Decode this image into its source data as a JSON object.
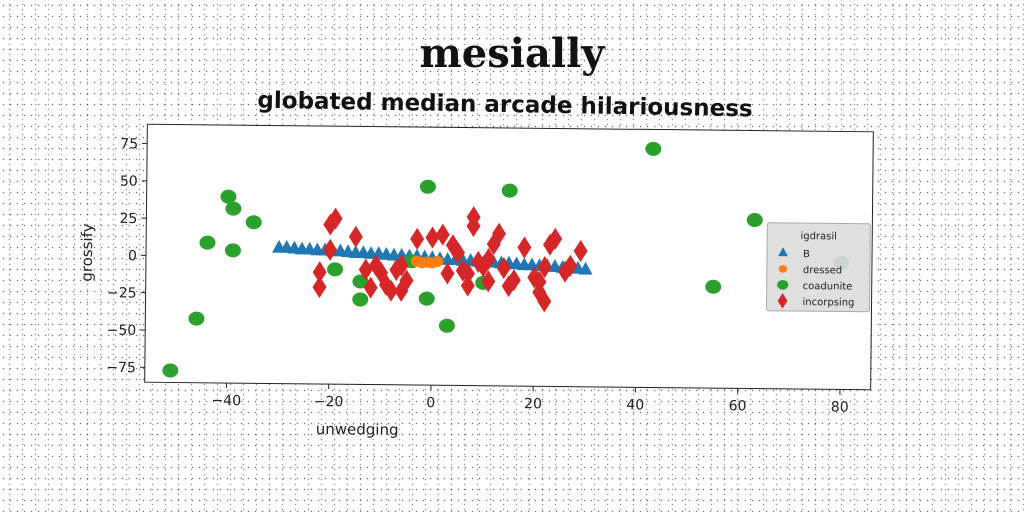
{
  "suptitle": "mesially",
  "chart_data": {
    "type": "scatter",
    "title": "globated median arcade hilariousness",
    "xlabel": "unwedging",
    "ylabel": "grossify",
    "xlim": [
      -56,
      86
    ],
    "ylim": [
      -85,
      88
    ],
    "xticks": [
      -40,
      -20,
      0,
      20,
      40,
      60,
      80
    ],
    "yticks": [
      -75,
      -50,
      -25,
      0,
      25,
      50,
      75
    ],
    "grid": false,
    "legend": {
      "title": "igdrasil",
      "position": "right"
    },
    "series": [
      {
        "name": "B",
        "marker": "triangle",
        "color": "#1f77b4",
        "x": [
          -30,
          -28.5,
          -27,
          -25.5,
          -24,
          -22.5,
          -21,
          -19.5,
          -18,
          -16.5,
          -15,
          -13.5,
          -12,
          -10.5,
          -9,
          -7.5,
          -6,
          -4.5,
          -3,
          -1.5,
          0,
          1.5,
          3,
          4.5,
          6,
          7.5,
          9,
          10.5,
          12,
          13.5,
          15,
          16.5,
          18,
          19.5,
          21,
          22.5,
          24,
          25.5,
          27,
          28.5,
          30
        ],
        "y": [
          6,
          6,
          5.5,
          5,
          5,
          4.5,
          4.5,
          4,
          4,
          3.5,
          3,
          3,
          2.5,
          2.5,
          2,
          1.5,
          1.5,
          1,
          1,
          0.5,
          0,
          -0.5,
          -1,
          -1,
          -1.5,
          -1.5,
          -2,
          -2.5,
          -2.5,
          -3,
          -3,
          -3.5,
          -4,
          -4,
          -4.5,
          -4.5,
          -5,
          -5.5,
          -5.5,
          -6,
          -6.5
        ]
      },
      {
        "name": "dressed",
        "marker": "circle-small",
        "color": "#ff7f0e",
        "x": [
          -3,
          -2,
          -1,
          0,
          1
        ],
        "y": [
          -2,
          -3,
          -2.5,
          -3,
          -2
        ]
      },
      {
        "name": "coadunite",
        "marker": "circle",
        "color": "#2ca02c",
        "x": [
          -51,
          -46,
          -44,
          -40,
          -39,
          -39,
          -35,
          -19,
          -14,
          -14,
          -4,
          -1,
          -1,
          3,
          10,
          15,
          43,
          55,
          63,
          80
        ],
        "y": [
          -77,
          -42,
          9,
          40,
          32,
          4,
          23,
          -8,
          -16,
          -28,
          -2,
          48,
          -27,
          -45,
          -16,
          46,
          75,
          -17,
          28,
          0
        ]
      },
      {
        "name": "incorpsing",
        "marker": "diamond",
        "color": "#d62728",
        "x": [
          -20,
          -19,
          -20,
          -15,
          -12,
          -10,
          -9,
          -8,
          -7,
          -6,
          -5,
          -3,
          0,
          2,
          4,
          5,
          6,
          7,
          8,
          8,
          9,
          10,
          11,
          12,
          13,
          14,
          16,
          18,
          20,
          21,
          22,
          23,
          24,
          26,
          27,
          29,
          -22,
          -22,
          -13,
          -11,
          -6,
          3,
          7,
          11,
          15,
          21,
          22
        ],
        "y": [
          22,
          26,
          5,
          14,
          -20,
          -10,
          -18,
          -22,
          -8,
          -5,
          -15,
          13,
          14,
          16,
          9,
          4,
          -8,
          -10,
          22,
          28,
          -2,
          -5,
          -15,
          10,
          17,
          -6,
          -14,
          8,
          -12,
          -22,
          -28,
          10,
          14,
          -8,
          -4,
          6,
          -10,
          -20,
          -8,
          -5,
          -22,
          -10,
          -18,
          0,
          -18,
          -15,
          -5
        ]
      }
    ]
  }
}
